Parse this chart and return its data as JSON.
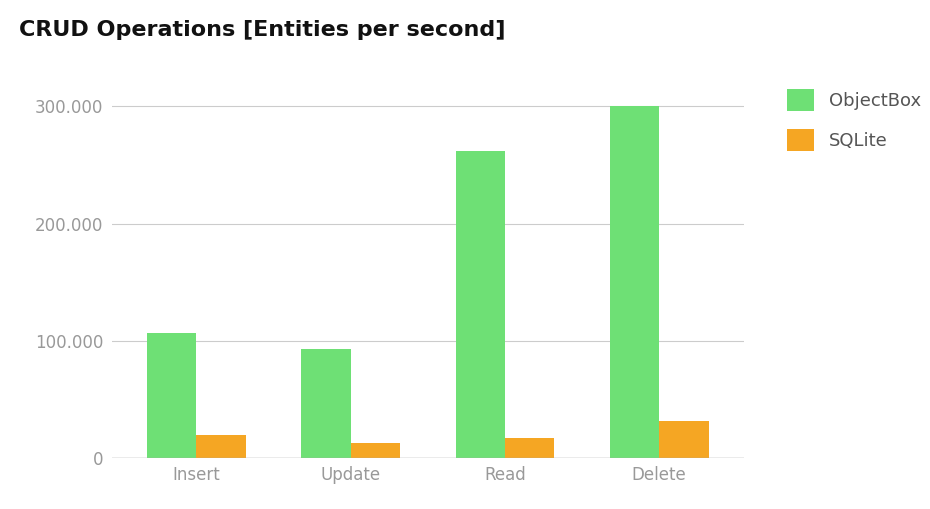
{
  "title": "CRUD Operations [Entities per second]",
  "categories": [
    "Insert",
    "Update",
    "Read",
    "Delete"
  ],
  "objectbox_values": [
    107000,
    93000,
    262000,
    300000
  ],
  "sqlite_values": [
    20000,
    13000,
    17000,
    32000
  ],
  "objectbox_color": "#6EE075",
  "sqlite_color": "#F5A623",
  "ylim": [
    0,
    330000
  ],
  "yticks": [
    0,
    100000,
    200000,
    300000
  ],
  "ytick_labels": [
    "0",
    "100.000",
    "200.000",
    "300.000"
  ],
  "legend_labels": [
    "ObjectBox",
    "SQLite"
  ],
  "background_color": "#ffffff",
  "grid_color": "#cccccc",
  "title_fontsize": 16,
  "tick_fontsize": 12,
  "legend_fontsize": 13,
  "bar_width": 0.32,
  "tick_color": "#999999",
  "title_color": "#111111",
  "legend_text_color": "#555555"
}
